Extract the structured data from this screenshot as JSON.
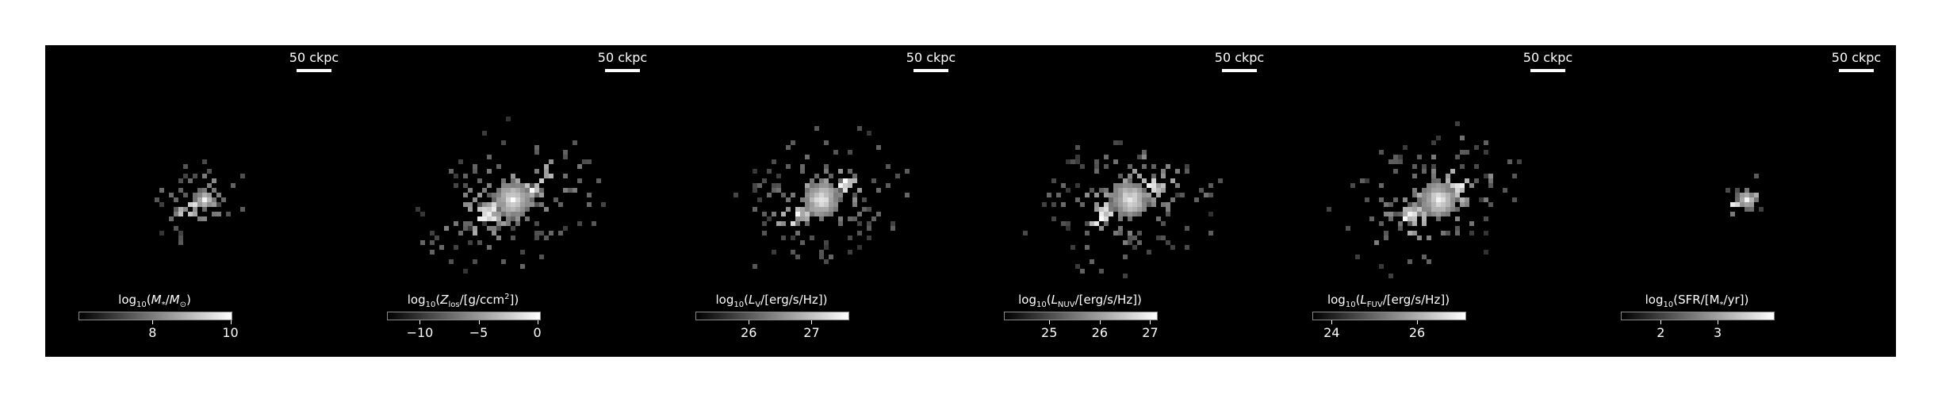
{
  "panels": [
    {
      "scale_label": "50 ckpc",
      "colorbar_label": "log10(M*/M⊙)",
      "ticks": [
        {
          "label": "8",
          "value": 8
        },
        {
          "label": "10",
          "value": 10
        }
      ],
      "range": [
        6.1,
        10.05
      ],
      "blob": {
        "spread": 0.55,
        "count": 70
      }
    },
    {
      "scale_label": "50 ckpc",
      "colorbar_label": "log10(Zlos/[g/ccm²])",
      "ticks": [
        {
          "label": "−10",
          "value": -10
        },
        {
          "label": "−5",
          "value": -5
        },
        {
          "label": "0",
          "value": 0
        }
      ],
      "range": [
        -12.8,
        0.3
      ],
      "blob": {
        "spread": 1.0,
        "count": 220
      }
    },
    {
      "scale_label": "50 ckpc",
      "colorbar_label": "log10(LV/[erg/s/Hz])",
      "ticks": [
        {
          "label": "26",
          "value": 26
        },
        {
          "label": "27",
          "value": 27
        }
      ],
      "range": [
        25.15,
        27.6
      ],
      "blob": {
        "spread": 0.9,
        "count": 200
      }
    },
    {
      "scale_label": "50 ckpc",
      "colorbar_label": "log10(LNUV/[erg/s/Hz])",
      "ticks": [
        {
          "label": "25",
          "value": 25
        },
        {
          "label": "26",
          "value": 26
        },
        {
          "label": "27",
          "value": 27
        }
      ],
      "range": [
        24.1,
        27.15
      ],
      "blob": {
        "spread": 0.95,
        "count": 210
      }
    },
    {
      "scale_label": "50 ckpc",
      "colorbar_label": "log10(LFUV/[erg/s/Hz])",
      "ticks": [
        {
          "label": "24",
          "value": 24
        },
        {
          "label": "26",
          "value": 26
        }
      ],
      "range": [
        23.55,
        27.15
      ],
      "blob": {
        "spread": 0.95,
        "count": 210
      }
    },
    {
      "scale_label": "50 ckpc",
      "colorbar_label": "log10(SFR/[M*/yr])",
      "ticks": [
        {
          "label": "2",
          "value": 2
        },
        {
          "label": "3",
          "value": 3
        }
      ],
      "range": [
        1.3,
        4.0
      ],
      "blob": {
        "spread": 0.3,
        "count": 25
      }
    }
  ]
}
